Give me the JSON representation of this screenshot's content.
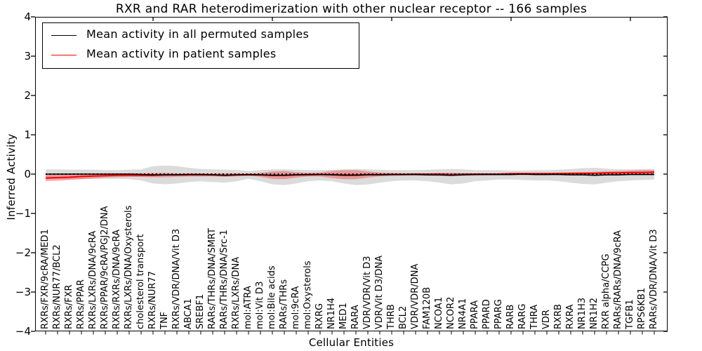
{
  "chart_data": {
    "type": "line",
    "title": "RXR and RAR heterodimerization with other nuclear receptor -- 166 samples",
    "xlabel": "Cellular Entities",
    "ylabel": "Inferred Activity",
    "ylim": [
      -4,
      4
    ],
    "yticks": [
      4,
      3,
      2,
      1,
      0,
      -1,
      -2,
      -3,
      -4
    ],
    "x_major_tick_categories": [
      9,
      19,
      29,
      39,
      49
    ],
    "grid": false,
    "legend_position": "upper left",
    "categories": [
      "RXRs/FXR/9cRA/MED1",
      "RXRs/NUR77/BCL2",
      "RXRs/FXR",
      "RXRs/PPAR",
      "RXRs/LXRs/DNA/9cRA",
      "RXRs/PPAR/9cRA/PGJ2/DNA",
      "RXRs/RXRs/DNA/9cRA",
      "RXRs/LXRs/DNA/Oxysterols",
      "cholesterol transport",
      "RXRs/NUR77",
      "TNF",
      "RXRs/VDR/DNA/Vit D3",
      "ABCA1",
      "SREBF1",
      "RARs/THRs/DNA/SMRT",
      "RARs/THRs/DNA/Src-1",
      "RXRs/LXRs/DNA",
      "mol:ATRA",
      "mol:Vit D3",
      "mol:Bile acids",
      "RARs/THRs",
      "mol:9cRA",
      "mol:Oxysterols",
      "RXRG",
      "NR1H4",
      "MED1",
      "RARA",
      "VDR/VDR/Vit D3",
      "VDR/Vit D3/DNA",
      "THRB",
      "BCL2",
      "VDR/VDR/DNA",
      "FAM120B",
      "NCOA1",
      "NCOR2",
      "NR4A1",
      "PPARA",
      "PPARD",
      "PPARG",
      "RARB",
      "RARG",
      "THRA",
      "VDR",
      "RXRB",
      "RXRA",
      "NR1H3",
      "NR1H2",
      "RXR alpha/CCPG",
      "RARs/RARs/DNA/9cRA",
      "TGFB1",
      "RPS6KB1",
      "RARs/VDR/DNA/Vit D3"
    ],
    "series": [
      {
        "name": "Mean activity in all permuted samples",
        "color": "#000000",
        "values": [
          0,
          0,
          0,
          0,
          0,
          0,
          0,
          0,
          -0.01,
          -0.02,
          -0.02,
          -0.02,
          -0.01,
          -0.01,
          -0.02,
          -0.03,
          -0.02,
          -0.01,
          -0.02,
          -0.03,
          -0.03,
          -0.02,
          -0.01,
          -0.01,
          -0.02,
          -0.03,
          -0.03,
          -0.02,
          -0.02,
          -0.01,
          -0.01,
          -0.01,
          -0.02,
          -0.02,
          -0.03,
          -0.02,
          -0.01,
          -0.01,
          -0.01,
          -0.01,
          0,
          -0.01,
          -0.01,
          -0.01,
          -0.02,
          -0.02,
          -0.03,
          -0.02,
          -0.02,
          -0.01,
          -0.01,
          -0.01
        ]
      },
      {
        "name": "Mean activity in patient samples",
        "color": "#ff0000",
        "values": [
          -0.1,
          -0.09,
          -0.08,
          -0.06,
          -0.05,
          -0.04,
          -0.03,
          -0.03,
          -0.03,
          -0.03,
          -0.02,
          -0.02,
          -0.02,
          -0.02,
          -0.02,
          -0.03,
          -0.02,
          -0.02,
          -0.02,
          -0.03,
          -0.03,
          -0.02,
          -0.02,
          -0.01,
          -0.01,
          -0.02,
          -0.02,
          -0.01,
          -0.01,
          -0.01,
          -0.01,
          0,
          0,
          0,
          -0.01,
          0,
          0,
          0,
          0,
          0.01,
          0.01,
          0.01,
          0.01,
          0.01,
          0.02,
          0.02,
          0.02,
          0.03,
          0.03,
          0.04,
          0.04,
          0.05
        ]
      }
    ],
    "bands": [
      {
        "name": "permuted-samples-std-band",
        "color": "#000000",
        "opacity": 0.14,
        "upper": [
          0.12,
          0.12,
          0.11,
          0.11,
          0.11,
          0.1,
          0.1,
          0.11,
          0.12,
          0.2,
          0.22,
          0.2,
          0.16,
          0.13,
          0.12,
          0.11,
          0.1,
          0.08,
          0.1,
          0.12,
          0.12,
          0.11,
          0.1,
          0.1,
          0.11,
          0.12,
          0.13,
          0.12,
          0.11,
          0.1,
          0.1,
          0.1,
          0.11,
          0.12,
          0.13,
          0.12,
          0.1,
          0.1,
          0.1,
          0.09,
          0.09,
          0.1,
          0.1,
          0.11,
          0.13,
          0.15,
          0.16,
          0.14,
          0.12,
          0.12,
          0.13,
          0.13
        ],
        "lower": [
          -0.14,
          -0.14,
          -0.13,
          -0.13,
          -0.12,
          -0.12,
          -0.12,
          -0.13,
          -0.16,
          -0.24,
          -0.26,
          -0.24,
          -0.2,
          -0.18,
          -0.2,
          -0.22,
          -0.18,
          -0.12,
          -0.18,
          -0.26,
          -0.28,
          -0.24,
          -0.18,
          -0.16,
          -0.18,
          -0.24,
          -0.28,
          -0.26,
          -0.22,
          -0.18,
          -0.16,
          -0.16,
          -0.18,
          -0.22,
          -0.26,
          -0.24,
          -0.18,
          -0.16,
          -0.14,
          -0.14,
          -0.15,
          -0.16,
          -0.16,
          -0.18,
          -0.22,
          -0.25,
          -0.26,
          -0.22,
          -0.18,
          -0.16,
          -0.15,
          -0.14
        ]
      },
      {
        "name": "patient-samples-std-band",
        "color": "#ff0000",
        "opacity": 0.3,
        "upper": [
          -0.02,
          -0.01,
          0,
          0,
          0.01,
          0.01,
          0.01,
          0.02,
          0.02,
          0.03,
          0.03,
          0.02,
          0.02,
          0.02,
          0.02,
          0.02,
          0.02,
          0.01,
          0.03,
          0.07,
          0.08,
          0.05,
          0.03,
          0.04,
          0.08,
          0.1,
          0.1,
          0.07,
          0.04,
          0.03,
          0.02,
          0.02,
          0.02,
          0.03,
          0.03,
          0.02,
          0.02,
          0.02,
          0.02,
          0.03,
          0.03,
          0.03,
          0.03,
          0.04,
          0.04,
          0.05,
          0.06,
          0.07,
          0.08,
          0.09,
          0.1,
          0.1
        ],
        "lower": [
          -0.18,
          -0.17,
          -0.15,
          -0.13,
          -0.11,
          -0.09,
          -0.08,
          -0.07,
          -0.07,
          -0.08,
          -0.08,
          -0.07,
          -0.06,
          -0.06,
          -0.06,
          -0.07,
          -0.06,
          -0.04,
          -0.07,
          -0.12,
          -0.13,
          -0.09,
          -0.06,
          -0.06,
          -0.1,
          -0.13,
          -0.13,
          -0.09,
          -0.06,
          -0.05,
          -0.04,
          -0.04,
          -0.04,
          -0.05,
          -0.05,
          -0.04,
          -0.04,
          -0.03,
          -0.03,
          -0.03,
          -0.03,
          -0.03,
          -0.03,
          -0.02,
          -0.02,
          -0.02,
          -0.02,
          -0.01,
          -0.01,
          0,
          0,
          0
        ]
      }
    ],
    "zero_line": {
      "y": 0,
      "style": "dotted",
      "color": "#000000"
    }
  }
}
